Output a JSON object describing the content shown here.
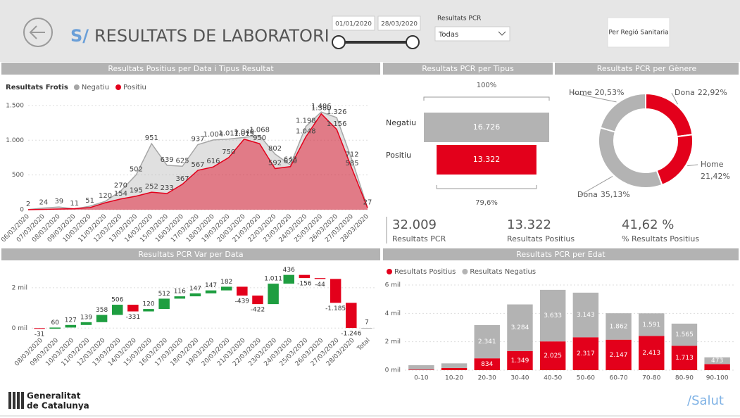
{
  "header": {
    "title_prefix": "S/",
    "title": "RESULTATS DE LABORATORI",
    "date_from": "01/01/2020",
    "date_to": "28/03/2020",
    "filter_label": "Resultats PCR",
    "filter_value": "Todas",
    "button": "Per Regió Sanitaria"
  },
  "kpis": [
    {
      "value": "32.009",
      "label": "Resultats PCR"
    },
    {
      "value": "13.322",
      "label": "Resultats Positius"
    },
    {
      "value": "41,62 %",
      "label": "% Resultats Positius"
    }
  ],
  "footer": {
    "org_line1": "Generalitat",
    "org_line2": "de Catalunya",
    "brand": "/Salut"
  },
  "chart_data": [
    {
      "type": "area",
      "title": "Resultats Positius per Data i Tipus Resultat",
      "legend_title": "Resultats Frotis",
      "categories": [
        "06/03/2020",
        "07/03/2020",
        "08/03/2020",
        "09/03/2020",
        "10/03/2020",
        "11/03/2020",
        "12/03/2020",
        "13/03/2020",
        "14/03/2020",
        "15/03/2020",
        "16/03/2020",
        "17/03/2020",
        "18/03/2020",
        "19/03/2020",
        "20/03/2020",
        "21/03/2020",
        "22/03/2020",
        "23/03/2020",
        "24/03/2020",
        "25/03/2020",
        "26/03/2020",
        "27/03/2020",
        "28/03/2020"
      ],
      "series": [
        {
          "name": "Negatiu",
          "color": "#a6a6a6",
          "values": [
            2,
            24,
            39,
            11,
            51,
            120,
            270,
            502,
            951,
            639,
            625,
            937,
            1004,
            1017,
            1040,
            1068,
            802,
            643,
            1198,
            1406,
            1326,
            712,
            27
          ],
          "value_labels": [
            "2",
            "24",
            "39",
            "11",
            "51",
            "120",
            "270",
            "502",
            "951",
            "639",
            "625",
            "937",
            "1.004",
            "1.017",
            "1.040",
            "1.068",
            "802",
            "643",
            "1.198",
            "1.406",
            "1.326",
            "712",
            "27"
          ]
        },
        {
          "name": "Positiu",
          "color": "#e3001b",
          "values": [
            0,
            5,
            10,
            15,
            30,
            100,
            154,
            195,
            252,
            233,
            367,
            567,
            616,
            750,
            1015,
            950,
            592,
            620,
            1048,
            1380,
            1156,
            585,
            27
          ],
          "value_labels": [
            null,
            null,
            null,
            null,
            null,
            null,
            "154",
            "195",
            "252",
            "233",
            "367",
            "567",
            "616",
            "750",
            "1.015",
            "950",
            "592",
            "620",
            "1.048",
            "1.380",
            "1.156",
            "585",
            null
          ]
        }
      ],
      "ylim": [
        0,
        1600
      ],
      "yticks": [
        0,
        500,
        {
          "value": 1000,
          "label": "1.000"
        },
        {
          "value": 1500,
          "label": "1.500"
        }
      ],
      "grid": true
    },
    {
      "type": "funnel",
      "title": "Resultats PCR per Tipus",
      "categories": [
        "Negatiu",
        "Positiu"
      ],
      "values": [
        16726,
        13322
      ],
      "value_labels": [
        "16.726",
        "13.322"
      ],
      "colors": [
        "#b3b3b3",
        "#e3001b"
      ],
      "conversion_labels": [
        "100%",
        "79,6%"
      ]
    },
    {
      "type": "donut",
      "title": "Resultats PCR per Gènere",
      "categories": [
        "Dona",
        "Home",
        "Dona",
        "Home"
      ],
      "values": [
        22.92,
        21.42,
        35.13,
        20.53
      ],
      "value_labels": [
        "22,92%",
        "21,42%",
        "35,13%",
        "20,53%"
      ],
      "colors": [
        "#e3001b",
        "#e3001b",
        "#b3b3b3",
        "#b3b3b3"
      ]
    },
    {
      "type": "waterfall",
      "title": "Resultats PCR Var per Data",
      "categories": [
        "08/03/2020",
        "09/03/2020",
        "10/03/2020",
        "11/03/2020",
        "12/03/2020",
        "13/03/2020",
        "14/03/2020",
        "15/03/2020",
        "16/03/2020",
        "17/03/2020",
        "18/03/2020",
        "19/03/2020",
        "20/03/2020",
        "21/03/2020",
        "22/03/2020",
        "23/03/2020",
        "24/03/2020",
        "25/03/2020",
        "26/03/2020",
        "27/03/2020",
        "28/03/2020"
      ],
      "values": [
        -31,
        60,
        127,
        139,
        358,
        506,
        -331,
        120,
        512,
        116,
        147,
        147,
        182,
        -439,
        -422,
        1011,
        436,
        -156,
        -44,
        -1185,
        -1246
      ],
      "value_labels": [
        "-31",
        "60",
        "127",
        "139",
        "358",
        "506",
        "-331",
        "120",
        "512",
        "116",
        "147",
        "147",
        "182",
        "-439",
        "-422",
        "1.011",
        "436",
        "-156",
        "-44",
        "-1.185",
        "-1.246"
      ],
      "total_label": "Total",
      "total": 7,
      "increase_color": "#1e9e40",
      "decrease_color": "#e3001b",
      "total_color": "#b3b3b3",
      "ylim": [
        -200,
        2800
      ],
      "yticks": [
        {
          "value": 0,
          "label": "0 mil"
        },
        {
          "value": 2000,
          "label": "2 mil"
        }
      ],
      "grid": true
    },
    {
      "type": "stacked_bar",
      "title": "Resultats PCR per Edat",
      "categories": [
        "0-10",
        "10-20",
        "20-30",
        "30-40",
        "40-50",
        "50-60",
        "60-70",
        "70-80",
        "80-90",
        "90-100"
      ],
      "series": [
        {
          "name": "Resultats Positius",
          "color": "#e3001b",
          "values": [
            40,
            150,
            834,
            1349,
            2025,
            2317,
            2147,
            2413,
            1713,
            430
          ],
          "value_labels": [
            null,
            null,
            "834",
            "1.349",
            "2.025",
            "2.317",
            "2.147",
            "2.413",
            "1.713",
            null
          ]
        },
        {
          "name": "Resultats Negatius",
          "color": "#b3b3b3",
          "values": [
            310,
            330,
            2341,
            3284,
            3633,
            3143,
            1862,
            1591,
            1565,
            473
          ],
          "value_labels": [
            null,
            null,
            "2.341",
            "3.284",
            "3.633",
            "3.143",
            "1.862",
            "1.591",
            "1.565",
            "473"
          ]
        }
      ],
      "ylim": [
        0,
        6000
      ],
      "yticks": [
        {
          "value": 0,
          "label": "0 mil"
        },
        {
          "value": 2000,
          "label": "2 mil"
        },
        {
          "value": 4000,
          "label": "4 mil"
        },
        {
          "value": 6000,
          "label": "6 mil"
        }
      ],
      "grid": true
    }
  ]
}
